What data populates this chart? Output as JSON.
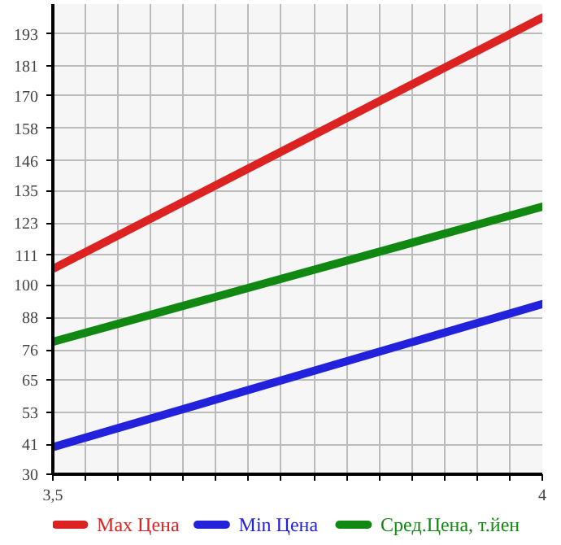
{
  "chart_data": {
    "type": "line",
    "x": [
      3.5,
      4
    ],
    "series": [
      {
        "name": "Max Цена",
        "color": "#dd2222",
        "values": [
          106,
          199
        ]
      },
      {
        "name": "Min Цена",
        "color": "#2222dd",
        "values": [
          40,
          93
        ]
      },
      {
        "name": "Сред.Цена, т.йен",
        "color": "#118811",
        "values": [
          79,
          129
        ]
      }
    ],
    "xlim": [
      3.5,
      4
    ],
    "ylim": [
      30,
      204
    ],
    "xticks": [
      {
        "value": 3.5,
        "label": "3,5"
      },
      {
        "value": 3.5333,
        "label": null
      },
      {
        "value": 3.5667,
        "label": null
      },
      {
        "value": 3.6,
        "label": null
      },
      {
        "value": 3.6333,
        "label": null
      },
      {
        "value": 3.6667,
        "label": null
      },
      {
        "value": 3.7,
        "label": null
      },
      {
        "value": 3.7333,
        "label": null
      },
      {
        "value": 3.7667,
        "label": null
      },
      {
        "value": 3.8,
        "label": null
      },
      {
        "value": 3.8333,
        "label": null
      },
      {
        "value": 3.8667,
        "label": null
      },
      {
        "value": 3.9,
        "label": null
      },
      {
        "value": 3.9333,
        "label": null
      },
      {
        "value": 3.9667,
        "label": null
      },
      {
        "value": 4,
        "label": "4"
      }
    ],
    "yticks": [
      30,
      41,
      53,
      65,
      76,
      88,
      100,
      111,
      123,
      135,
      146,
      158,
      170,
      181,
      193
    ],
    "grid": true,
    "legend": "bottom",
    "marker": "none",
    "line_style": "solid"
  }
}
